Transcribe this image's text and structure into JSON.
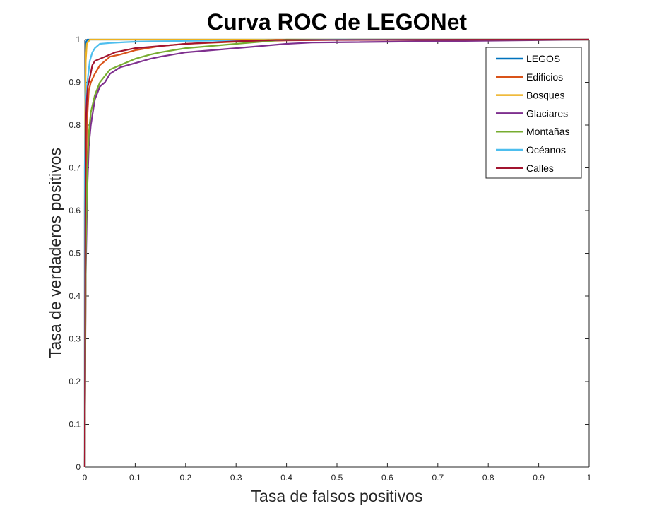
{
  "chart_data": {
    "type": "line",
    "title": "Curva ROC de LEGONet",
    "xlabel": "Tasa de falsos positivos",
    "ylabel": "Tasa de verdaderos positivos",
    "xlim": [
      0,
      1
    ],
    "ylim": [
      0,
      1
    ],
    "xticks": [
      "0",
      "0.1",
      "0.2",
      "0.3",
      "0.4",
      "0.5",
      "0.6",
      "0.7",
      "0.8",
      "0.9",
      "1"
    ],
    "yticks": [
      "0",
      "0.1",
      "0.2",
      "0.3",
      "0.4",
      "0.5",
      "0.6",
      "0.7",
      "0.8",
      "0.9",
      "1"
    ],
    "grid": false,
    "legend_position": "top-right",
    "series": [
      {
        "name": "LEGOS",
        "color": "#0072BD",
        "x": [
          0,
          0,
          0.001,
          0.002,
          0.003,
          0.005,
          0.15,
          1
        ],
        "y": [
          0,
          0.6,
          0.9,
          0.98,
          0.995,
          1,
          1,
          1
        ]
      },
      {
        "name": "Edificios",
        "color": "#D95319",
        "x": [
          0,
          0.002,
          0.004,
          0.008,
          0.012,
          0.02,
          0.03,
          0.04,
          0.05,
          0.07,
          0.1,
          0.15,
          0.2,
          0.3,
          0.4,
          0.53,
          1
        ],
        "y": [
          0,
          0.5,
          0.8,
          0.88,
          0.9,
          0.92,
          0.94,
          0.95,
          0.96,
          0.965,
          0.975,
          0.985,
          0.99,
          0.995,
          0.998,
          1,
          1
        ]
      },
      {
        "name": "Bosques",
        "color": "#EDB120",
        "x": [
          0,
          0,
          0.001,
          0.002,
          0.004,
          0.01,
          0.5,
          1
        ],
        "y": [
          0,
          0.7,
          0.85,
          0.95,
          0.99,
          1,
          1,
          1
        ]
      },
      {
        "name": "Glaciares",
        "color": "#7E2F8E",
        "x": [
          0,
          0.002,
          0.005,
          0.008,
          0.012,
          0.02,
          0.03,
          0.04,
          0.05,
          0.07,
          0.1,
          0.13,
          0.15,
          0.2,
          0.25,
          0.3,
          0.35,
          0.4,
          0.45,
          1
        ],
        "y": [
          0,
          0.45,
          0.65,
          0.75,
          0.8,
          0.86,
          0.89,
          0.9,
          0.92,
          0.935,
          0.945,
          0.955,
          0.96,
          0.97,
          0.975,
          0.98,
          0.985,
          0.99,
          0.993,
          1
        ]
      },
      {
        "name": "Montañas",
        "color": "#77AC30",
        "x": [
          0,
          0.002,
          0.005,
          0.008,
          0.012,
          0.02,
          0.03,
          0.04,
          0.05,
          0.07,
          0.1,
          0.13,
          0.15,
          0.2,
          0.25,
          0.3,
          0.35,
          0.4,
          1
        ],
        "y": [
          0,
          0.5,
          0.7,
          0.78,
          0.83,
          0.87,
          0.9,
          0.915,
          0.93,
          0.94,
          0.955,
          0.965,
          0.97,
          0.98,
          0.985,
          0.99,
          0.995,
          1,
          1
        ]
      },
      {
        "name": "Océanos",
        "color": "#4DBEEE",
        "x": [
          0,
          0,
          0.002,
          0.005,
          0.01,
          0.015,
          0.02,
          0.03,
          0.05,
          0.08,
          0.1,
          0.2,
          0.3,
          0.4,
          0.5,
          1
        ],
        "y": [
          0,
          0.7,
          0.85,
          0.9,
          0.95,
          0.97,
          0.98,
          0.99,
          0.992,
          0.994,
          0.995,
          0.997,
          0.998,
          0.999,
          1,
          1
        ]
      },
      {
        "name": "Calles",
        "color": "#A2142F",
        "x": [
          0,
          0.001,
          0.002,
          0.004,
          0.006,
          0.01,
          0.015,
          0.02,
          0.04,
          0.06,
          0.08,
          0.1,
          0.15,
          0.2,
          0.25,
          0.3,
          0.38,
          1
        ],
        "y": [
          0,
          0.55,
          0.8,
          0.86,
          0.89,
          0.91,
          0.94,
          0.95,
          0.96,
          0.97,
          0.975,
          0.98,
          0.985,
          0.99,
          0.993,
          0.996,
          0.999,
          1
        ]
      }
    ]
  }
}
